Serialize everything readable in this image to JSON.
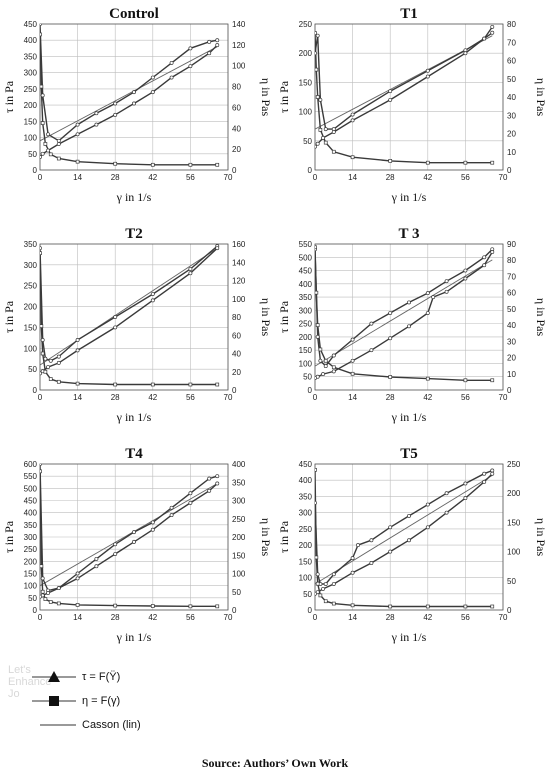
{
  "chart_data": [
    {
      "type": "line",
      "title": "Control",
      "xlabel": "γ in 1/s",
      "ylabel": "τ in Pa",
      "y2label": "η in Pas",
      "xlim": [
        0,
        70
      ],
      "xticks": [
        0,
        14,
        28,
        42,
        56,
        70
      ],
      "ylim": [
        0,
        450
      ],
      "yticks": [
        0,
        50,
        100,
        150,
        200,
        250,
        300,
        350,
        400,
        450
      ],
      "y2lim": [
        0,
        140
      ],
      "y2ticks": [
        0,
        20,
        40,
        60,
        80,
        100,
        120,
        140
      ],
      "tau_up": {
        "x": [
          0,
          1,
          3,
          7,
          14,
          21,
          28,
          35,
          42,
          49,
          56,
          63,
          66
        ],
        "y": [
          450,
          230,
          110,
          90,
          140,
          175,
          205,
          240,
          285,
          330,
          375,
          395,
          400
        ]
      },
      "tau_down": {
        "x": [
          66,
          63,
          56,
          49,
          42,
          35,
          28,
          21,
          14,
          7,
          3,
          1,
          0
        ],
        "y": [
          385,
          360,
          320,
          285,
          240,
          205,
          170,
          140,
          110,
          80,
          60,
          50,
          40
        ]
      },
      "casson": {
        "x": [
          0,
          66
        ],
        "y": [
          90,
          380
        ]
      },
      "eta": {
        "x": [
          0,
          0.5,
          1,
          2,
          4,
          7,
          14,
          28,
          42,
          56,
          66
        ],
        "y": [
          130,
          80,
          45,
          25,
          15,
          11,
          8,
          6,
          5,
          5,
          5
        ]
      }
    },
    {
      "type": "line",
      "title": "T1",
      "xlabel": "γ in 1/s",
      "ylabel": "τ in Pa",
      "y2label": "η in Pas",
      "xlim": [
        0,
        70
      ],
      "xticks": [
        0,
        14,
        28,
        42,
        56,
        70
      ],
      "ylim": [
        0,
        250
      ],
      "yticks": [
        0,
        50,
        100,
        150,
        200,
        250
      ],
      "y2lim": [
        0,
        80
      ],
      "y2ticks": [
        0,
        10,
        20,
        30,
        40,
        50,
        60,
        70,
        80
      ],
      "tau_up": {
        "x": [
          0,
          1,
          2,
          4,
          7,
          14,
          28,
          42,
          56,
          63,
          66
        ],
        "y": [
          200,
          230,
          120,
          70,
          70,
          95,
          135,
          170,
          205,
          225,
          245
        ]
      },
      "tau_down": {
        "x": [
          66,
          63,
          56,
          42,
          28,
          14,
          7,
          3,
          1,
          0
        ],
        "y": [
          235,
          225,
          200,
          160,
          120,
          85,
          65,
          55,
          45,
          40
        ]
      },
      "casson": {
        "x": [
          0,
          66
        ],
        "y": [
          70,
          230
        ]
      },
      "eta": {
        "x": [
          0,
          0.5,
          1,
          2,
          4,
          7,
          14,
          28,
          42,
          56,
          66
        ],
        "y": [
          75,
          55,
          40,
          22,
          15,
          10,
          7,
          5,
          4,
          4,
          4
        ]
      }
    },
    {
      "type": "line",
      "title": "T2",
      "xlabel": "γ in 1/s",
      "ylabel": "τ in Pa",
      "y2label": "η in Pas",
      "xlim": [
        0,
        70
      ],
      "xticks": [
        0,
        14,
        28,
        42,
        56,
        70
      ],
      "ylim": [
        0,
        350
      ],
      "yticks": [
        0,
        50,
        100,
        150,
        200,
        250,
        300,
        350
      ],
      "y2lim": [
        0,
        160
      ],
      "y2ticks": [
        0,
        20,
        40,
        60,
        80,
        100,
        120,
        140,
        160
      ],
      "tau_up": {
        "x": [
          0,
          1,
          2,
          4,
          7,
          14,
          28,
          42,
          56,
          66
        ],
        "y": [
          340,
          120,
          75,
          70,
          80,
          120,
          175,
          230,
          290,
          345
        ]
      },
      "tau_down": {
        "x": [
          66,
          56,
          42,
          28,
          14,
          7,
          3,
          1,
          0
        ],
        "y": [
          340,
          280,
          215,
          150,
          95,
          65,
          55,
          45,
          40
        ]
      },
      "casson": {
        "x": [
          0,
          66
        ],
        "y": [
          60,
          340
        ]
      },
      "eta": {
        "x": [
          0,
          0.5,
          1,
          2,
          4,
          7,
          14,
          28,
          42,
          56,
          66
        ],
        "y": [
          150,
          70,
          40,
          20,
          12,
          9,
          7,
          6,
          6,
          6,
          6
        ]
      }
    },
    {
      "type": "line",
      "title": "T 3",
      "xlabel": "γ in 1/s",
      "ylabel": "τ in Pa",
      "y2label": "η in Pas",
      "xlim": [
        0,
        70
      ],
      "xticks": [
        0,
        14,
        28,
        42,
        56,
        70
      ],
      "ylim": [
        0,
        550
      ],
      "yticks": [
        0,
        50,
        100,
        150,
        200,
        250,
        300,
        350,
        400,
        450,
        500,
        550
      ],
      "y2lim": [
        0,
        90
      ],
      "y2ticks": [
        0,
        10,
        20,
        30,
        40,
        50,
        60,
        70,
        80,
        90
      ],
      "tau_up": {
        "x": [
          0,
          1,
          2,
          4,
          7,
          14,
          21,
          28,
          35,
          42,
          49,
          56,
          63,
          66
        ],
        "y": [
          530,
          200,
          110,
          90,
          130,
          190,
          250,
          290,
          330,
          365,
          410,
          450,
          500,
          530
        ]
      },
      "tau_down": {
        "x": [
          66,
          63,
          56,
          49,
          44,
          42,
          35,
          28,
          21,
          14,
          7,
          3,
          1,
          0
        ],
        "y": [
          520,
          470,
          420,
          370,
          350,
          290,
          240,
          195,
          150,
          110,
          70,
          60,
          50,
          45
        ]
      },
      "casson": {
        "x": [
          0,
          66
        ],
        "y": [
          90,
          490
        ]
      },
      "eta": {
        "x": [
          0,
          0.5,
          1,
          2,
          4,
          7,
          14,
          28,
          42,
          56,
          66
        ],
        "y": [
          88,
          60,
          40,
          25,
          18,
          14,
          10,
          8,
          7,
          6,
          6
        ]
      }
    },
    {
      "type": "line",
      "title": "T4",
      "xlabel": "γ in 1/s",
      "ylabel": "τ in Pa",
      "y2label": "η in Pas",
      "xlim": [
        0,
        70
      ],
      "xticks": [
        0,
        14,
        28,
        42,
        56,
        70
      ],
      "ylim": [
        0,
        600
      ],
      "yticks": [
        0,
        50,
        100,
        150,
        200,
        250,
        300,
        350,
        400,
        450,
        500,
        550,
        600
      ],
      "y2lim": [
        0,
        400
      ],
      "y2ticks": [
        0,
        50,
        100,
        150,
        200,
        250,
        300,
        350,
        400
      ],
      "tau_up": {
        "x": [
          0,
          1,
          3,
          7,
          14,
          21,
          28,
          35,
          42,
          49,
          56,
          63,
          66
        ],
        "y": [
          600,
          130,
          80,
          90,
          150,
          210,
          270,
          320,
          360,
          420,
          480,
          540,
          550
        ]
      },
      "tau_down": {
        "x": [
          66,
          63,
          56,
          49,
          42,
          35,
          28,
          21,
          14,
          7,
          3,
          1,
          0
        ],
        "y": [
          520,
          490,
          440,
          390,
          330,
          280,
          230,
          180,
          130,
          90,
          70,
          60,
          55
        ]
      },
      "casson": {
        "x": [
          0,
          66
        ],
        "y": [
          100,
          520
        ]
      },
      "eta": {
        "x": [
          0,
          0.5,
          1,
          2,
          4,
          7,
          14,
          28,
          42,
          56,
          66
        ],
        "y": [
          380,
          120,
          50,
          30,
          22,
          18,
          14,
          12,
          11,
          10,
          10
        ]
      }
    },
    {
      "type": "line",
      "title": "T5",
      "xlabel": "γ in 1/s",
      "ylabel": "τ in Pa",
      "y2label": "η in Pas",
      "xlim": [
        0,
        70
      ],
      "xticks": [
        0,
        14,
        28,
        42,
        56,
        70
      ],
      "ylim": [
        0,
        450
      ],
      "yticks": [
        0,
        50,
        100,
        150,
        200,
        250,
        300,
        350,
        400,
        450
      ],
      "y2lim": [
        0,
        250
      ],
      "y2ticks": [
        0,
        50,
        100,
        150,
        200,
        250
      ],
      "tau_up": {
        "x": [
          0,
          1,
          2,
          4,
          7,
          14,
          16,
          21,
          28,
          35,
          42,
          49,
          56,
          63,
          66
        ],
        "y": [
          330,
          110,
          80,
          80,
          110,
          160,
          200,
          215,
          255,
          290,
          325,
          360,
          390,
          420,
          430
        ]
      },
      "tau_down": {
        "x": [
          66,
          63,
          56,
          49,
          42,
          35,
          28,
          21,
          14,
          7,
          3,
          1,
          0
        ],
        "y": [
          420,
          395,
          345,
          300,
          255,
          215,
          180,
          145,
          115,
          80,
          65,
          55,
          50
        ]
      },
      "casson": {
        "x": [
          0,
          66
        ],
        "y": [
          80,
          415
        ]
      },
      "eta": {
        "x": [
          0,
          0.5,
          1,
          2,
          4,
          7,
          14,
          28,
          42,
          56,
          66
        ],
        "y": [
          240,
          90,
          45,
          25,
          15,
          11,
          8,
          6,
          6,
          6,
          6
        ]
      }
    }
  ],
  "legend": [
    {
      "label": "τ = F(Ÿ)",
      "marker": "triangle"
    },
    {
      "label": "η = F(γ)",
      "marker": "square"
    },
    {
      "label": "Casson (lin)",
      "marker": "line"
    }
  ],
  "source": "Source: Authors’ Own Work",
  "watermark": [
    "Let's",
    "Enhance",
    "Jo"
  ],
  "colors": {
    "curve": "#3a3a3a",
    "grid": "#bdbdbd",
    "frame": "#555555"
  }
}
